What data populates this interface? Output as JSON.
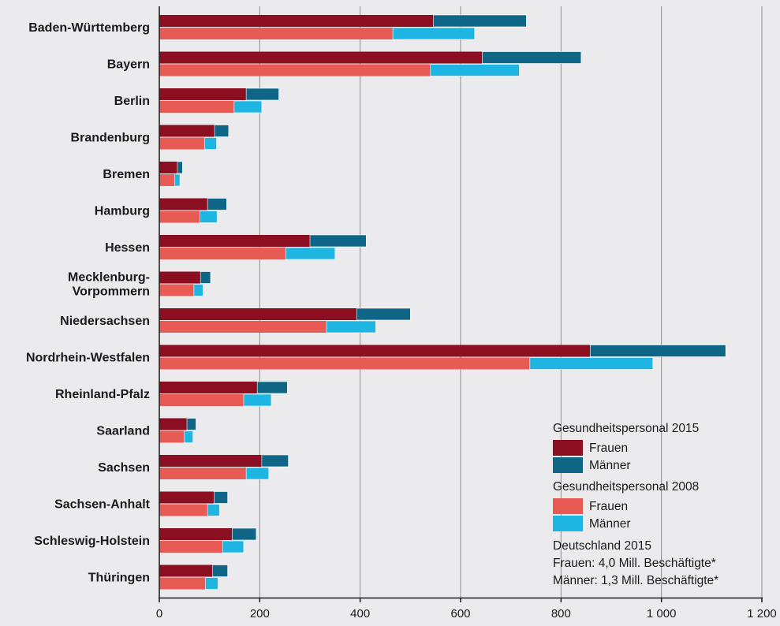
{
  "chart_data": {
    "type": "bar",
    "orientation": "horizontal",
    "stacked": true,
    "categories": [
      [
        "Baden-Württemberg"
      ],
      [
        "Bayern"
      ],
      [
        "Berlin"
      ],
      [
        "Brandenburg"
      ],
      [
        "Bremen"
      ],
      [
        "Hamburg"
      ],
      [
        "Hessen"
      ],
      [
        "Mecklenburg-",
        "Vorpommern"
      ],
      [
        "Niedersachsen"
      ],
      [
        "Nordrhein-Westfalen"
      ],
      [
        "Rheinland-Pfalz"
      ],
      [
        "Saarland"
      ],
      [
        "Sachsen"
      ],
      [
        "Sachsen-Anhalt"
      ],
      [
        "Schleswig-Holstein"
      ],
      [
        "Thüringen"
      ]
    ],
    "series": [
      {
        "group": "2015",
        "name": "Frauen",
        "color": "#8b0e21",
        "values": [
          546,
          643,
          173,
          110,
          36,
          96,
          300,
          82,
          393,
          858,
          195,
          55,
          204,
          109,
          145,
          106
        ]
      },
      {
        "group": "2015",
        "name": "Männer",
        "color": "#0f6585",
        "values": [
          185,
          197,
          65,
          28,
          10,
          38,
          112,
          20,
          107,
          270,
          60,
          18,
          53,
          27,
          48,
          30
        ]
      },
      {
        "group": "2008",
        "name": "Frauen",
        "color": "#e85b55",
        "values": [
          465,
          540,
          149,
          90,
          31,
          81,
          252,
          69,
          333,
          738,
          168,
          50,
          173,
          96,
          126,
          92
        ]
      },
      {
        "group": "2008",
        "name": "Männer",
        "color": "#1fb5e3",
        "values": [
          163,
          177,
          55,
          24,
          10,
          34,
          98,
          18,
          98,
          245,
          55,
          17,
          45,
          24,
          42,
          25
        ]
      }
    ],
    "xlim": [
      0,
      1200
    ],
    "xticks": [
      0,
      200,
      400,
      600,
      800,
      1000,
      1200
    ],
    "xtick_labels": [
      "0",
      "200",
      "400",
      "600",
      "800",
      "1 000",
      "1 200"
    ],
    "grid": "vertical",
    "legend": {
      "position": "bottom-right",
      "groups": [
        {
          "title": "Gesundheitspersonal 2015",
          "items": [
            {
              "label": "Frauen",
              "color": "#8b0e21"
            },
            {
              "label": "Männer",
              "color": "#0f6585"
            }
          ]
        },
        {
          "title": "Gesundheitspersonal 2008",
          "items": [
            {
              "label": "Frauen",
              "color": "#e85b55"
            },
            {
              "label": "Männer",
              "color": "#1fb5e3"
            }
          ]
        }
      ],
      "note": [
        "Deutschland 2015",
        "Frauen: 4,0 Mill. Beschäftigte*",
        "Männer: 1,3 Mill. Beschäftigte*"
      ]
    },
    "colors": {
      "background": "#ebebed",
      "grid": "#8c8c8c",
      "axis": "#1a1a1a"
    }
  }
}
